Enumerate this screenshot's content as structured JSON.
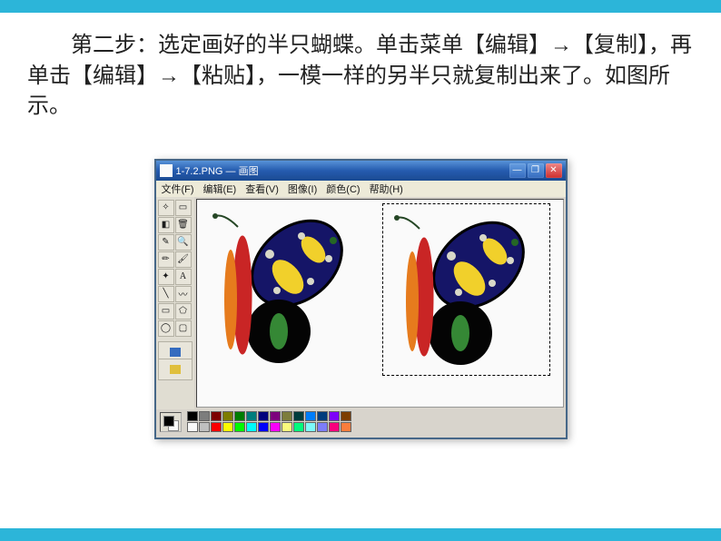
{
  "instruction": "第二步：选定画好的半只蝴蝶。单击菜单【编辑】→【复制】，再单击【编辑】→【粘贴】，一模一样的另半只就复制出来了。如图所示。",
  "window": {
    "title": "1-7.2.PNG — 画图",
    "controls": {
      "minimize": "—",
      "maximize": "❐",
      "close": "✕"
    }
  },
  "menu": {
    "file": "文件(F)",
    "edit": "编辑(E)",
    "view": "查看(V)",
    "image": "图像(I)",
    "colors": "颜色(C)",
    "help": "帮助(H)"
  },
  "tools": {
    "freeform_select": "✧",
    "rect_select": "▭",
    "eraser": "◧",
    "fill": "🗑",
    "picker": "✎",
    "magnify": "🔍",
    "pencil": "✏",
    "brush": "🖌",
    "airbrush": "✦",
    "text": "A",
    "line": "╲",
    "curve": "〰",
    "rect": "▭",
    "polygon": "⬠",
    "ellipse": "◯",
    "roundrect": "▢"
  },
  "butterfly_colors": {
    "body_red": "#c92a2a",
    "body_orange": "#e67e22",
    "antenna": "#2a4a2a",
    "upper_wing": "#1a1a6a",
    "upper_wing_border": "#000000",
    "lower_wing": "#0a0a0a",
    "spot_yellow": "#f0d030",
    "spot_small": "#d8d8c8",
    "spot_green": "#2a6a2a",
    "eye_green": "#3a8a3a"
  },
  "palette_colors": [
    "#000000",
    "#808080",
    "#800000",
    "#808000",
    "#008000",
    "#008080",
    "#000080",
    "#800080",
    "#808040",
    "#004040",
    "#0080ff",
    "#004080",
    "#8000ff",
    "#804000",
    "#ffffff",
    "#c0c0c0",
    "#ff0000",
    "#ffff00",
    "#00ff00",
    "#00ffff",
    "#0000ff",
    "#ff00ff",
    "#ffff80",
    "#00ff80",
    "#80ffff",
    "#8080ff",
    "#ff0080",
    "#ff8040"
  ]
}
